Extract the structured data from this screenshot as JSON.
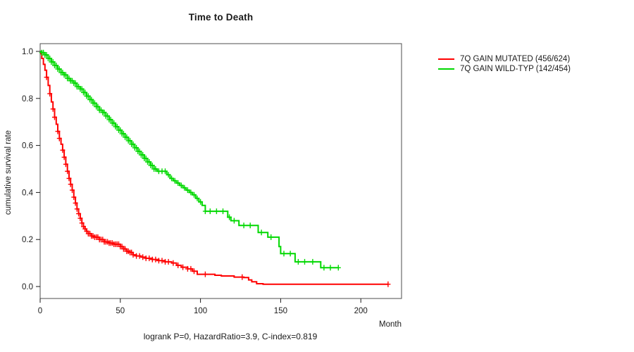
{
  "title": "Time to Death",
  "footer": "logrank P=0, HazardRatio=3.9, C-index=0.819",
  "axes": {
    "x_label": "Month",
    "y_label": "cumulative survival rate",
    "x_ticks": [
      0,
      50,
      100,
      150,
      200
    ],
    "y_ticks": [
      "0.0",
      "0.2",
      "0.4",
      "0.6",
      "0.8",
      "1.0"
    ]
  },
  "legend": [
    {
      "label": "7Q GAIN MUTATED (456/624)",
      "color": "#ff0000"
    },
    {
      "label": "7Q GAIN WILD-TYP (142/454)",
      "color": "#00d800"
    }
  ],
  "chart_data": {
    "type": "line",
    "subtype": "kaplan-meier-step-curves",
    "title": "Time to Death",
    "xlabel": "Month",
    "ylabel": "cumulative survival rate",
    "xlim": [
      0,
      225
    ],
    "ylim": [
      0.0,
      1.0
    ],
    "grid": false,
    "legend_position": "right-outside",
    "annotation": "logrank P=0, HazardRatio=3.9, C-index=0.819",
    "series": [
      {
        "name": "7Q GAIN MUTATED (456/624)",
        "color": "#ff0000",
        "points": [
          [
            0,
            0.99
          ],
          [
            1,
            0.97
          ],
          [
            2,
            0.945
          ],
          [
            3,
            0.92
          ],
          [
            4,
            0.89
          ],
          [
            5,
            0.855
          ],
          [
            6,
            0.82
          ],
          [
            7,
            0.785
          ],
          [
            8,
            0.755
          ],
          [
            9,
            0.72
          ],
          [
            10,
            0.69
          ],
          [
            11,
            0.66
          ],
          [
            12,
            0.63
          ],
          [
            13,
            0.605
          ],
          [
            14,
            0.58
          ],
          [
            15,
            0.55
          ],
          [
            16,
            0.52
          ],
          [
            17,
            0.49
          ],
          [
            18,
            0.46
          ],
          [
            19,
            0.435
          ],
          [
            20,
            0.41
          ],
          [
            21,
            0.38
          ],
          [
            22,
            0.355
          ],
          [
            23,
            0.33
          ],
          [
            24,
            0.31
          ],
          [
            25,
            0.29
          ],
          [
            26,
            0.27
          ],
          [
            27,
            0.255
          ],
          [
            28,
            0.245
          ],
          [
            29,
            0.235
          ],
          [
            30,
            0.225
          ],
          [
            32,
            0.215
          ],
          [
            34,
            0.21
          ],
          [
            37,
            0.2
          ],
          [
            40,
            0.19
          ],
          [
            43,
            0.185
          ],
          [
            46,
            0.18
          ],
          [
            50,
            0.17
          ],
          [
            52,
            0.16
          ],
          [
            54,
            0.15
          ],
          [
            56,
            0.145
          ],
          [
            58,
            0.135
          ],
          [
            60,
            0.13
          ],
          [
            63,
            0.125
          ],
          [
            66,
            0.12
          ],
          [
            70,
            0.115
          ],
          [
            74,
            0.11
          ],
          [
            78,
            0.105
          ],
          [
            82,
            0.1
          ],
          [
            85,
            0.09
          ],
          [
            88,
            0.082
          ],
          [
            92,
            0.075
          ],
          [
            95,
            0.065
          ],
          [
            98,
            0.052
          ],
          [
            109,
            0.048
          ],
          [
            113,
            0.045
          ],
          [
            121,
            0.04
          ],
          [
            127,
            0.038
          ],
          [
            130,
            0.028
          ],
          [
            132,
            0.02
          ],
          [
            135,
            0.012
          ],
          [
            139,
            0.01
          ],
          [
            217,
            0.01
          ]
        ],
        "censor_months": [
          4,
          6,
          8,
          9,
          11,
          12,
          14,
          15,
          16,
          17,
          18,
          19,
          20,
          21,
          22,
          23,
          24,
          25,
          26,
          27,
          28,
          29,
          30,
          31,
          32,
          33,
          34,
          35,
          36,
          37,
          38,
          39,
          40,
          41,
          42,
          43,
          44,
          45,
          46,
          47,
          48,
          49,
          50,
          51,
          52,
          53,
          54,
          55,
          56,
          57,
          58,
          60,
          62,
          64,
          66,
          68,
          70,
          72,
          74,
          76,
          78,
          80,
          83,
          86,
          89,
          92,
          94,
          96,
          103,
          126,
          217
        ]
      },
      {
        "name": "7Q GAIN WILD-TYP (142/454)",
        "color": "#00d800",
        "points": [
          [
            0,
            1.0
          ],
          [
            1,
            0.995
          ],
          [
            3,
            0.985
          ],
          [
            5,
            0.97
          ],
          [
            7,
            0.955
          ],
          [
            9,
            0.94
          ],
          [
            11,
            0.925
          ],
          [
            13,
            0.91
          ],
          [
            15,
            0.9
          ],
          [
            17,
            0.885
          ],
          [
            19,
            0.875
          ],
          [
            21,
            0.865
          ],
          [
            23,
            0.85
          ],
          [
            25,
            0.84
          ],
          [
            27,
            0.825
          ],
          [
            29,
            0.81
          ],
          [
            31,
            0.795
          ],
          [
            33,
            0.78
          ],
          [
            35,
            0.765
          ],
          [
            37,
            0.75
          ],
          [
            39,
            0.74
          ],
          [
            41,
            0.725
          ],
          [
            43,
            0.71
          ],
          [
            45,
            0.695
          ],
          [
            47,
            0.68
          ],
          [
            49,
            0.665
          ],
          [
            51,
            0.65
          ],
          [
            53,
            0.635
          ],
          [
            55,
            0.62
          ],
          [
            57,
            0.605
          ],
          [
            59,
            0.59
          ],
          [
            61,
            0.575
          ],
          [
            63,
            0.56
          ],
          [
            65,
            0.545
          ],
          [
            67,
            0.53
          ],
          [
            69,
            0.515
          ],
          [
            71,
            0.5
          ],
          [
            73,
            0.49
          ],
          [
            79,
            0.475
          ],
          [
            81,
            0.46
          ],
          [
            83,
            0.45
          ],
          [
            85,
            0.44
          ],
          [
            87,
            0.43
          ],
          [
            89,
            0.42
          ],
          [
            91,
            0.41
          ],
          [
            93,
            0.4
          ],
          [
            95,
            0.39
          ],
          [
            97,
            0.375
          ],
          [
            99,
            0.36
          ],
          [
            101,
            0.345
          ],
          [
            103,
            0.32
          ],
          [
            117,
            0.295
          ],
          [
            119,
            0.28
          ],
          [
            124,
            0.26
          ],
          [
            136,
            0.23
          ],
          [
            142,
            0.21
          ],
          [
            149,
            0.17
          ],
          [
            150,
            0.14
          ],
          [
            159,
            0.105
          ],
          [
            175,
            0.08
          ],
          [
            186,
            0.08
          ]
        ],
        "censor_months": [
          1,
          2,
          3,
          4,
          5,
          6,
          7,
          8,
          9,
          10,
          11,
          12,
          13,
          14,
          15,
          16,
          17,
          18,
          19,
          20,
          21,
          22,
          23,
          24,
          25,
          26,
          27,
          28,
          29,
          30,
          31,
          32,
          33,
          34,
          35,
          36,
          37,
          38,
          39,
          40,
          41,
          42,
          43,
          44,
          45,
          46,
          47,
          48,
          49,
          50,
          51,
          52,
          53,
          54,
          55,
          56,
          57,
          58,
          59,
          60,
          61,
          62,
          63,
          64,
          65,
          66,
          67,
          68,
          69,
          70,
          71,
          72,
          74,
          76,
          78,
          80,
          82,
          84,
          86,
          88,
          90,
          92,
          94,
          96,
          98,
          100,
          103,
          106,
          110,
          114,
          118,
          121,
          127,
          131,
          138,
          144,
          152,
          156,
          161,
          165,
          170,
          177,
          181,
          186
        ]
      }
    ]
  }
}
